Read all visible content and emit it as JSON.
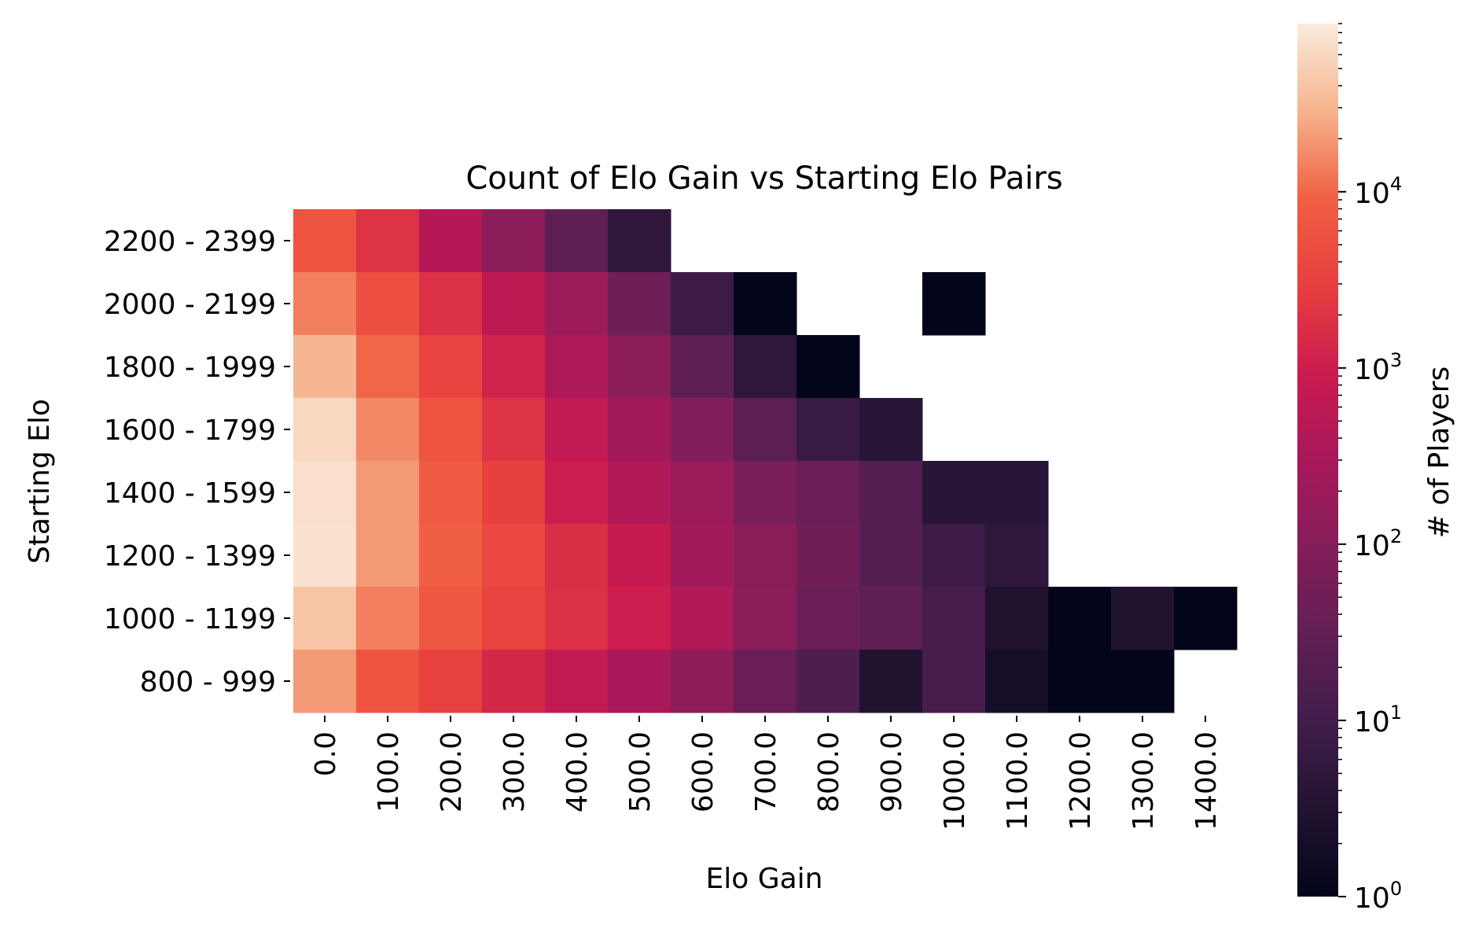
{
  "chart_data": {
    "type": "heatmap",
    "title": "Count of Elo Gain vs Starting Elo Pairs",
    "xlabel": "Elo Gain",
    "ylabel": "Starting Elo",
    "x_categories": [
      "0.0",
      "100.0",
      "200.0",
      "300.0",
      "400.0",
      "500.0",
      "600.0",
      "700.0",
      "800.0",
      "900.0",
      "1000.0",
      "1100.0",
      "1200.0",
      "1300.0",
      "1400.0"
    ],
    "y_categories": [
      "2200 - 2399",
      "2000 - 2199",
      "1800 - 1999",
      "1600 - 1799",
      "1400 - 1599",
      "1200 - 1399",
      "1000 - 1199",
      "800 - 999"
    ],
    "values": [
      [
        6000,
        2000,
        450,
        120,
        30,
        5,
        null,
        null,
        null,
        null,
        null,
        null,
        null,
        null,
        null
      ],
      [
        14000,
        5000,
        1800,
        600,
        200,
        50,
        8,
        1,
        null,
        null,
        1,
        null,
        null,
        null,
        null
      ],
      [
        30000,
        10000,
        3500,
        1200,
        350,
        120,
        30,
        5,
        1,
        null,
        null,
        null,
        null,
        null,
        null
      ],
      [
        60000,
        16000,
        6000,
        2000,
        700,
        250,
        90,
        25,
        7,
        4,
        null,
        null,
        null,
        null,
        null
      ],
      [
        70000,
        20000,
        8000,
        3000,
        1000,
        400,
        200,
        70,
        40,
        20,
        4,
        4,
        null,
        null,
        null
      ],
      [
        75000,
        20000,
        9000,
        4000,
        1700,
        800,
        250,
        110,
        50,
        20,
        8,
        5,
        null,
        null,
        null
      ],
      [
        40000,
        14000,
        7000,
        3500,
        1800,
        1000,
        400,
        120,
        40,
        30,
        12,
        3,
        1,
        3,
        1
      ],
      [
        20000,
        6000,
        3200,
        1400,
        700,
        300,
        130,
        40,
        15,
        3,
        12,
        2,
        1,
        1,
        null
      ]
    ],
    "scale": "log",
    "colorbar": {
      "label": "# of Players",
      "range": [
        1,
        90000
      ],
      "ticks": [
        {
          "base": "10",
          "exp": "0"
        },
        {
          "base": "10",
          "exp": "1"
        },
        {
          "base": "10",
          "exp": "2"
        },
        {
          "base": "10",
          "exp": "3"
        },
        {
          "base": "10",
          "exp": "4"
        }
      ]
    },
    "colormap": "rocket",
    "grid": false
  }
}
